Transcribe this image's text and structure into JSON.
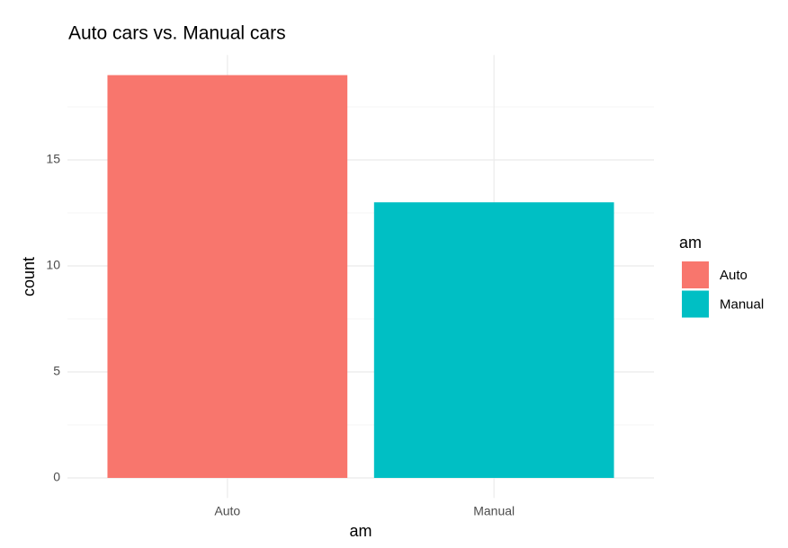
{
  "chart_data": {
    "type": "bar",
    "title": "Auto cars vs. Manual cars",
    "x_label": "am",
    "y_label": "count",
    "categories": [
      "Auto",
      "Manual"
    ],
    "values": [
      19,
      13
    ],
    "colors": [
      "#F8766D",
      "#00BFC4"
    ],
    "ylim": [
      -0.95,
      19.95
    ],
    "yticks": [
      0,
      5,
      10,
      15
    ],
    "grid": true,
    "minor_grid": true,
    "legend": {
      "title": "am",
      "position": "right"
    }
  }
}
